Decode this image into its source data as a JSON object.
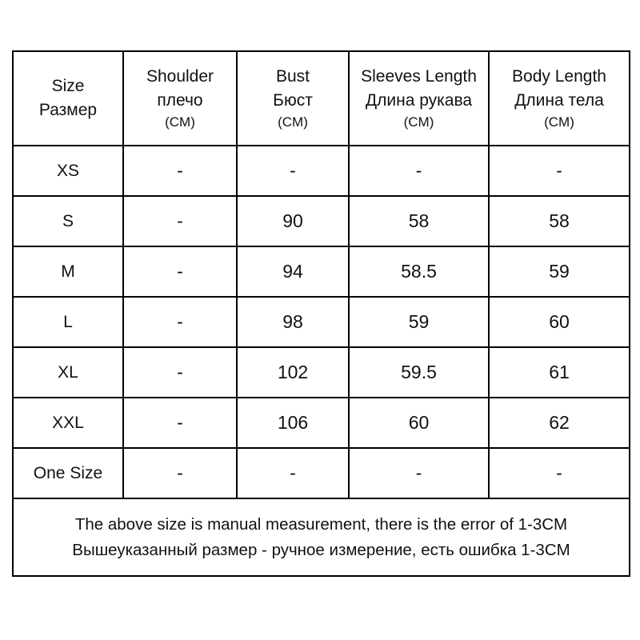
{
  "headers": [
    {
      "en": "Size",
      "ru": "Размер",
      "unit": ""
    },
    {
      "en": "Shoulder",
      "ru": "плечо",
      "unit": "(CM)"
    },
    {
      "en": "Bust",
      "ru": "Бюст",
      "unit": "(CM)"
    },
    {
      "en": "Sleeves Length",
      "ru": "Длина рукава",
      "unit": "(CM)"
    },
    {
      "en": "Body Length",
      "ru": "Длина тела",
      "unit": "(CM)"
    }
  ],
  "rows": [
    [
      "XS",
      "-",
      "-",
      "-",
      "-"
    ],
    [
      "S",
      "-",
      "90",
      "58",
      "58"
    ],
    [
      "M",
      "-",
      "94",
      "58.5",
      "59"
    ],
    [
      "L",
      "-",
      "98",
      "59",
      "60"
    ],
    [
      "XL",
      "-",
      "102",
      "59.5",
      "61"
    ],
    [
      "XXL",
      "-",
      "106",
      "60",
      "62"
    ],
    [
      "One Size",
      "-",
      "-",
      "-",
      "-"
    ]
  ],
  "note": {
    "en": "The above size is manual measurement, there is the error of 1-3CM",
    "ru": "Вышеуказанный размер - ручное измерение, есть ошибка 1-3CM"
  }
}
